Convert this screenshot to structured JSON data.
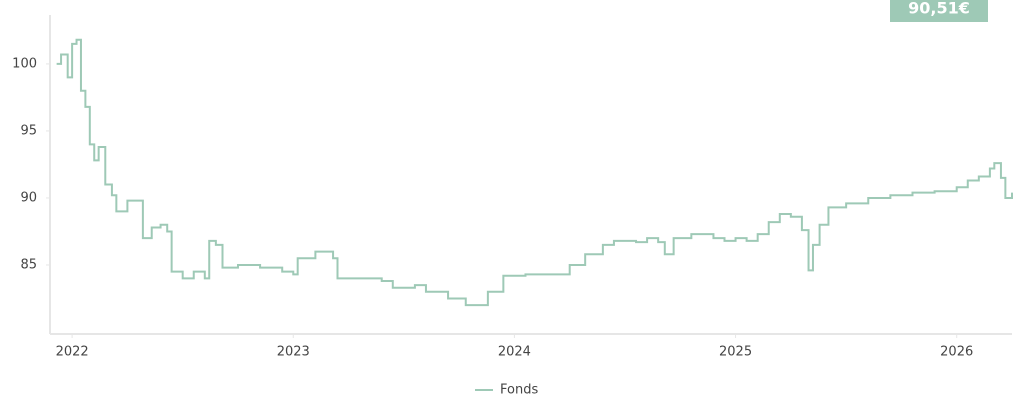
{
  "chart_data": {
    "type": "line",
    "badge": "90,51€",
    "x": [
      2021.93,
      2021.95,
      2021.98,
      2022.0,
      2022.02,
      2022.04,
      2022.06,
      2022.08,
      2022.1,
      2022.12,
      2022.15,
      2022.18,
      2022.2,
      2022.25,
      2022.3,
      2022.32,
      2022.36,
      2022.4,
      2022.43,
      2022.45,
      2022.5,
      2022.55,
      2022.6,
      2022.62,
      2022.65,
      2022.68,
      2022.75,
      2022.85,
      2022.95,
      2023.0,
      2023.02,
      2023.1,
      2023.18,
      2023.2,
      2023.3,
      2023.4,
      2023.45,
      2023.55,
      2023.6,
      2023.7,
      2023.78,
      2023.82,
      2023.88,
      2023.95,
      2024.05,
      2024.15,
      2024.25,
      2024.32,
      2024.4,
      2024.45,
      2024.55,
      2024.6,
      2024.65,
      2024.68,
      2024.72,
      2024.8,
      2024.9,
      2024.95,
      2025.0,
      2025.05,
      2025.1,
      2025.15,
      2025.2,
      2025.25,
      2025.3,
      2025.33,
      2025.35,
      2025.38,
      2025.42,
      2025.5,
      2025.6,
      2025.7,
      2025.8,
      2025.9,
      2026.0,
      2026.05,
      2026.1,
      2026.15,
      2026.17,
      2026.2,
      2026.22,
      2026.25
    ],
    "series": [
      {
        "name": "Fonds",
        "color": "#9ec9b6",
        "values": [
          100,
          100.7,
          99,
          101.5,
          101.8,
          98,
          96.8,
          94,
          92.8,
          93.8,
          91,
          90.2,
          89,
          89.8,
          89.8,
          87,
          87.8,
          88,
          87.5,
          84.5,
          84,
          84.5,
          84,
          86.8,
          86.5,
          84.8,
          85,
          84.8,
          84.5,
          84.3,
          85.5,
          86,
          85.5,
          84,
          84,
          83.8,
          83.3,
          83.5,
          83,
          82.5,
          82,
          82,
          83,
          84.2,
          84.3,
          84.3,
          85,
          85.8,
          86.5,
          86.8,
          86.7,
          87,
          86.7,
          85.8,
          87,
          87.3,
          87,
          86.8,
          87,
          86.8,
          87.3,
          88.2,
          88.8,
          88.6,
          87.6,
          84.6,
          86.5,
          88,
          89.3,
          89.6,
          90,
          90.2,
          90.4,
          90.5,
          90.8,
          91.3,
          91.6,
          92.2,
          92.6,
          91.5,
          90,
          90.4
        ]
      }
    ],
    "xlim": [
      2021.9,
      2026.25
    ],
    "xticks": [
      2022,
      2023,
      2024,
      2025,
      2026
    ],
    "ylim": [
      79.85,
      103.65
    ],
    "yticks": [
      85,
      90,
      95,
      100
    ]
  }
}
